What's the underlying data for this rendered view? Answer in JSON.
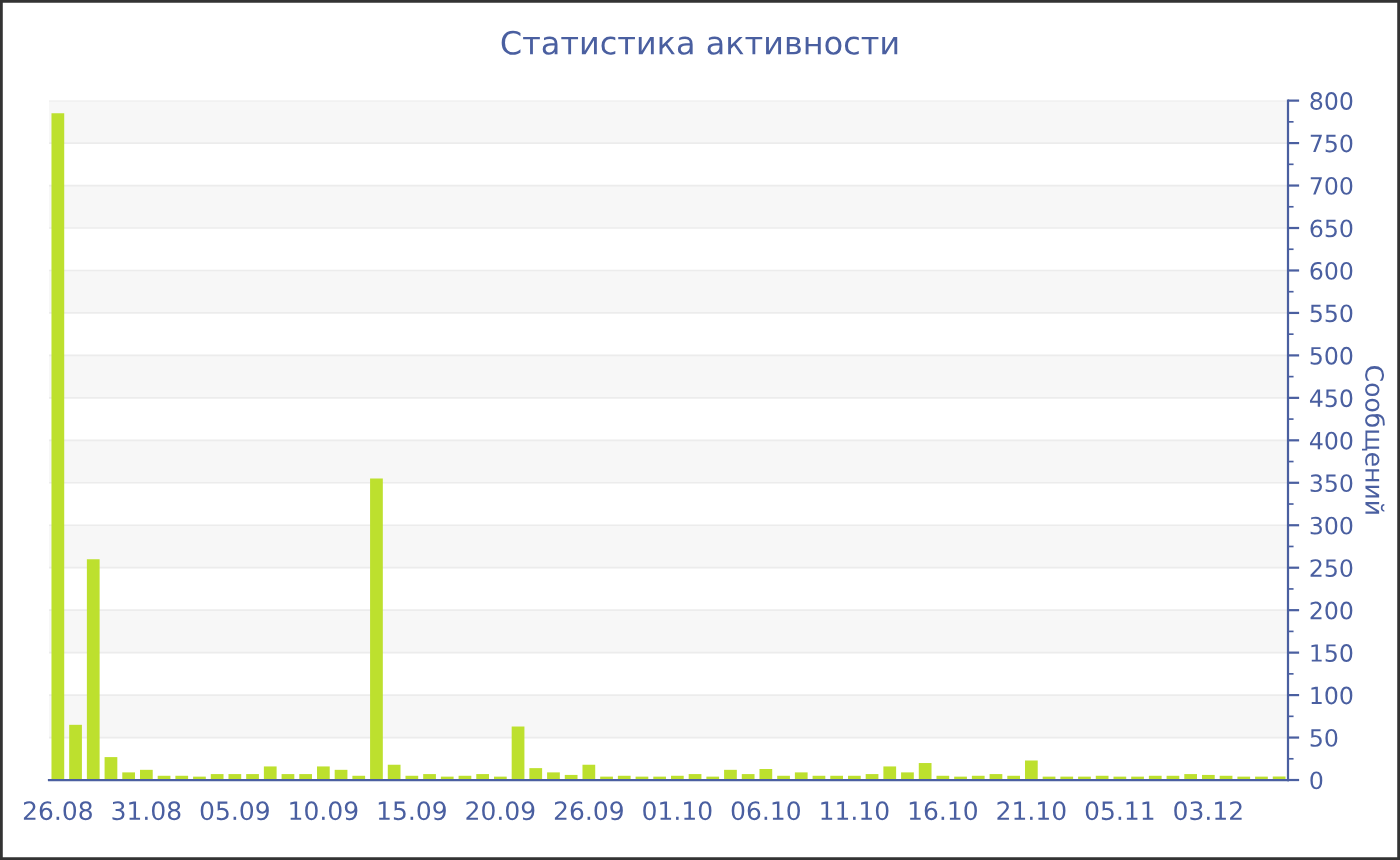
{
  "chart_data": {
    "type": "bar",
    "title": "Статистика активности",
    "ylabel": "Сообщений",
    "categories": [
      "26.08",
      null,
      null,
      null,
      null,
      "31.08",
      null,
      null,
      null,
      null,
      "05.09",
      null,
      null,
      null,
      null,
      "10.09",
      null,
      null,
      null,
      null,
      "15.09",
      null,
      null,
      null,
      null,
      "20.09",
      null,
      null,
      null,
      null,
      "26.09",
      null,
      null,
      null,
      null,
      "01.10",
      null,
      null,
      null,
      null,
      "06.10",
      null,
      null,
      null,
      null,
      "11.10",
      null,
      null,
      null,
      null,
      "16.10",
      null,
      null,
      null,
      null,
      "21.10",
      null,
      null,
      null,
      null,
      "05.11",
      null,
      null,
      null,
      null,
      "03.12",
      null,
      null,
      null,
      null
    ],
    "values": [
      785,
      65,
      260,
      27,
      9,
      12,
      5,
      5,
      4,
      7,
      7,
      7,
      16,
      7,
      7,
      16,
      12,
      5,
      355,
      18,
      5,
      7,
      4,
      5,
      7,
      4,
      63,
      14,
      9,
      6,
      18,
      4,
      5,
      4,
      4,
      5,
      7,
      4,
      12,
      7,
      13,
      5,
      9,
      5,
      5,
      5,
      7,
      16,
      9,
      20,
      5,
      4,
      5,
      7,
      5,
      23,
      4,
      4,
      4,
      5,
      4,
      4,
      5,
      5,
      7,
      6,
      5,
      4,
      4,
      4
    ],
    "color": "#bde02e",
    "ylim": [
      0,
      800
    ],
    "yticks": [
      0,
      50,
      100,
      150,
      200,
      250,
      300,
      350,
      400,
      450,
      500,
      550,
      600,
      650,
      700,
      750,
      800
    ],
    "grid": "y"
  }
}
